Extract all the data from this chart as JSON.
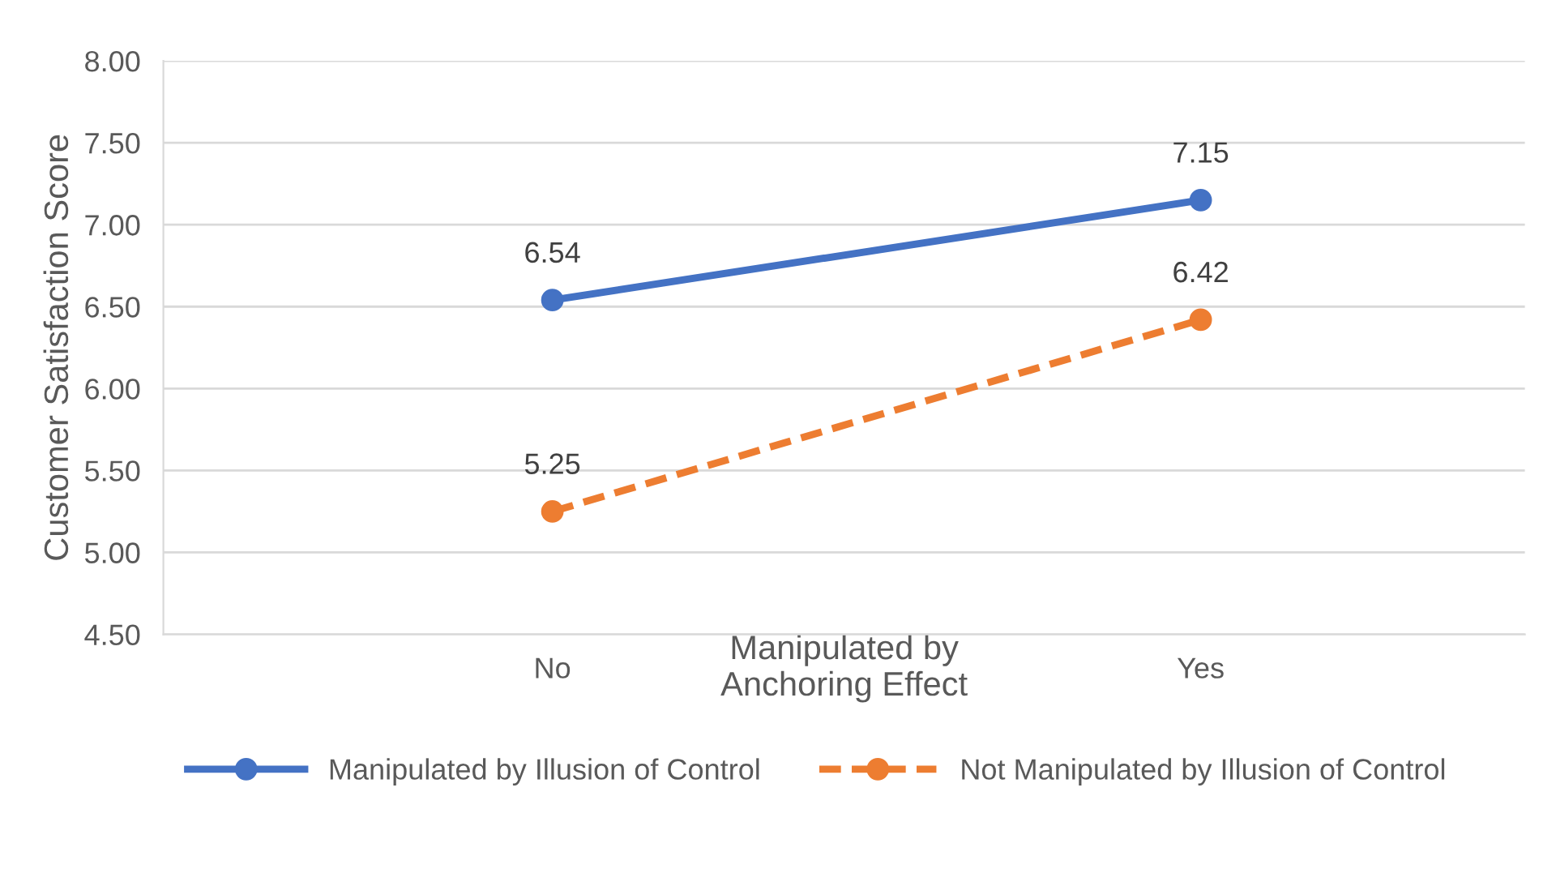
{
  "chart_data": {
    "type": "line",
    "xlabel": "Manipulated by\nAnchoring Effect",
    "ylabel": "Customer Satisfaction Score",
    "categories": [
      "No",
      "Yes"
    ],
    "series": [
      {
        "name": "Manipulated by Illusion of Control",
        "color": "#4472c4",
        "values": [
          6.54,
          7.15
        ],
        "line_style": "solid"
      },
      {
        "name": "Not Manipulated by Illusion of Control",
        "color": "#ed7d31",
        "values": [
          5.25,
          6.42
        ],
        "line_style": "dashed"
      }
    ],
    "ylim": [
      4.5,
      8.0
    ],
    "yticks": [
      {
        "value": 4.5,
        "label": "4.50"
      },
      {
        "value": 5.0,
        "label": "5.00"
      },
      {
        "value": 5.5,
        "label": "5.50"
      },
      {
        "value": 6.0,
        "label": "6.00"
      },
      {
        "value": 6.5,
        "label": "6.50"
      },
      {
        "value": 7.0,
        "label": "7.00"
      },
      {
        "value": 7.5,
        "label": "7.50"
      },
      {
        "value": 8.0,
        "label": "8.00"
      }
    ],
    "grid": "y",
    "legend": "bottom",
    "marker": "circle",
    "data_labels": true
  }
}
